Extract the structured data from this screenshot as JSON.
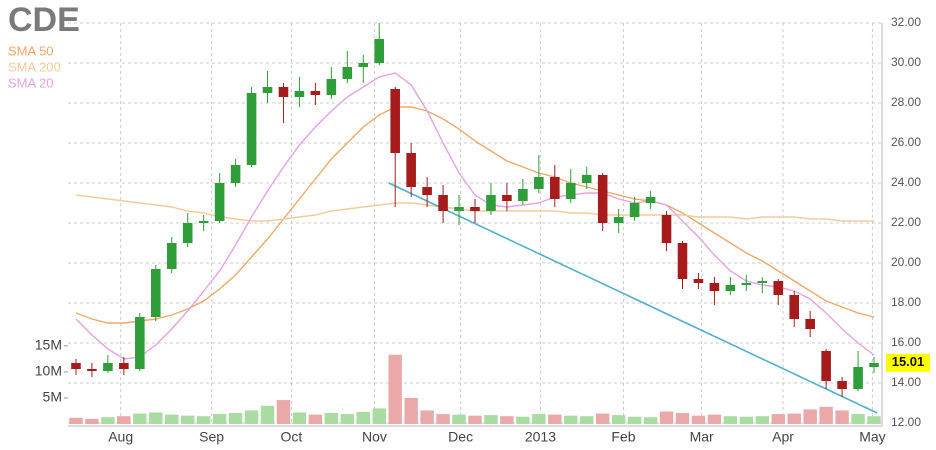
{
  "chart_data": {
    "type": "candlestick",
    "title": "CDE",
    "xlim": [
      -0.5,
      50.5
    ],
    "xticks": [
      {
        "value": 2.8,
        "label": "Aug"
      },
      {
        "value": 8.5,
        "label": "Sep"
      },
      {
        "value": 13.5,
        "label": "Oct"
      },
      {
        "value": 18.7,
        "label": "Nov"
      },
      {
        "value": 24.1,
        "label": "Dec"
      },
      {
        "value": 29.1,
        "label": "2013"
      },
      {
        "value": 34.3,
        "label": "Feb"
      },
      {
        "value": 39.2,
        "label": "Mar"
      },
      {
        "value": 44.3,
        "label": "Apr"
      },
      {
        "value": 49.9,
        "label": "May"
      }
    ],
    "ylim": [
      12,
      32
    ],
    "yticks": [
      {
        "value": 12,
        "label": "12.00"
      },
      {
        "value": 14,
        "label": "14.00"
      },
      {
        "value": 16,
        "label": "16.00"
      },
      {
        "value": 18,
        "label": "18.00"
      },
      {
        "value": 20,
        "label": "20.00"
      },
      {
        "value": 22,
        "label": "22.00"
      },
      {
        "value": 24,
        "label": "24.00"
      },
      {
        "value": 26,
        "label": "26.00"
      },
      {
        "value": 28,
        "label": "28.00"
      },
      {
        "value": 30,
        "label": "30.00"
      },
      {
        "value": 32,
        "label": "32.00"
      }
    ],
    "y2lim": [
      0,
      77
    ],
    "y2ticks": [
      {
        "value": 5,
        "label": "5M"
      },
      {
        "value": 10,
        "label": "10M"
      },
      {
        "value": 15,
        "label": "15M"
      }
    ],
    "grid": true,
    "up_color": "#2f9e3a",
    "down_color": "#a61c1c",
    "open": [
      15.0,
      14.7,
      14.6,
      15.0,
      14.7,
      17.3,
      19.7,
      21.0,
      22.0,
      22.1,
      24.0,
      24.9,
      28.5,
      28.8,
      28.3,
      28.6,
      28.4,
      29.2,
      29.8,
      30.0,
      28.7,
      25.5,
      23.8,
      23.4,
      22.6,
      22.8,
      22.6,
      23.4,
      23.1,
      23.7,
      24.3,
      23.2,
      24.0,
      24.4,
      22.0,
      22.3,
      23.0,
      22.4,
      21.0,
      19.2,
      19.0,
      18.6,
      18.9,
      19.0,
      19.1,
      18.4,
      17.2,
      15.6,
      14.1,
      13.7,
      14.8
    ],
    "high": [
      15.2,
      15.0,
      15.4,
      15.3,
      17.5,
      19.9,
      21.3,
      22.5,
      22.4,
      24.5,
      25.2,
      28.8,
      29.6,
      29.0,
      29.3,
      29.0,
      29.8,
      30.6,
      30.4,
      32.0,
      28.8,
      26.0,
      24.3,
      23.9,
      23.4,
      23.2,
      24.0,
      24.0,
      24.2,
      25.4,
      24.9,
      24.7,
      24.8,
      24.5,
      22.7,
      23.3,
      23.6,
      22.6,
      21.1,
      19.5,
      19.3,
      19.3,
      19.4,
      19.3,
      19.2,
      18.6,
      17.6,
      15.7,
      14.3,
      15.6,
      15.3
    ],
    "low": [
      14.4,
      14.3,
      14.5,
      14.4,
      14.6,
      17.1,
      19.5,
      20.8,
      21.6,
      22.0,
      23.8,
      24.8,
      28.0,
      27.0,
      27.8,
      27.9,
      28.2,
      29.0,
      29.0,
      29.9,
      22.8,
      23.3,
      22.8,
      22.0,
      21.9,
      22.0,
      22.4,
      22.6,
      22.9,
      23.5,
      22.8,
      23.0,
      23.7,
      21.6,
      21.5,
      22.1,
      22.7,
      20.6,
      18.7,
      18.7,
      17.9,
      18.4,
      18.6,
      18.5,
      17.9,
      16.8,
      16.3,
      13.7,
      13.3,
      13.6,
      14.5
    ],
    "close": [
      14.7,
      14.6,
      15.0,
      14.7,
      17.3,
      19.7,
      21.0,
      22.0,
      22.1,
      24.0,
      24.9,
      28.5,
      28.8,
      28.3,
      28.6,
      28.4,
      29.2,
      29.8,
      30.0,
      31.2,
      25.5,
      23.8,
      23.4,
      22.6,
      22.8,
      22.6,
      23.4,
      23.1,
      23.7,
      24.3,
      23.2,
      24.0,
      24.4,
      22.0,
      22.3,
      23.0,
      23.3,
      21.0,
      19.2,
      19.0,
      18.6,
      18.9,
      19.0,
      19.1,
      18.4,
      17.2,
      16.7,
      14.1,
      13.7,
      14.8,
      15.0
    ],
    "volume": {
      "axis": "y2",
      "values": [
        1.2,
        1.0,
        1.3,
        1.5,
        2.0,
        2.2,
        1.8,
        1.6,
        1.5,
        1.9,
        2.1,
        2.6,
        3.5,
        4.6,
        2.2,
        1.8,
        2.1,
        1.9,
        2.3,
        3.0,
        13.3,
        5.0,
        2.6,
        1.9,
        1.8,
        1.6,
        1.7,
        1.5,
        1.4,
        1.9,
        1.8,
        1.6,
        1.5,
        2.0,
        1.7,
        1.4,
        1.3,
        2.4,
        2.1,
        1.6,
        1.8,
        1.5,
        1.4,
        1.5,
        1.9,
        2.0,
        2.8,
        3.3,
        2.6,
        1.9,
        1.5
      ]
    },
    "series": [
      {
        "name": "SMA 50",
        "color": "#f0a868",
        "values": [
          17.5,
          17.2,
          17.0,
          17.0,
          17.1,
          17.2,
          17.4,
          17.7,
          18.1,
          18.7,
          19.4,
          20.3,
          21.2,
          22.2,
          23.2,
          24.2,
          25.2,
          26.0,
          26.8,
          27.4,
          27.8,
          27.8,
          27.6,
          27.2,
          26.7,
          26.1,
          25.6,
          25.1,
          24.8,
          24.5,
          24.3,
          24.0,
          23.8,
          23.6,
          23.4,
          23.2,
          23.1,
          22.9,
          22.5,
          22.0,
          21.5,
          21.0,
          20.5,
          20.1,
          19.6,
          19.1,
          18.6,
          18.1,
          17.8,
          17.5,
          17.3
        ]
      },
      {
        "name": "SMA 200",
        "color": "#f3cc9c",
        "values": [
          23.4,
          23.3,
          23.2,
          23.1,
          23.0,
          22.9,
          22.8,
          22.6,
          22.5,
          22.3,
          22.2,
          22.1,
          22.1,
          22.2,
          22.3,
          22.4,
          22.6,
          22.7,
          22.8,
          22.9,
          23.0,
          23.0,
          22.9,
          22.8,
          22.7,
          22.6,
          22.6,
          22.6,
          22.6,
          22.6,
          22.6,
          22.5,
          22.5,
          22.4,
          22.4,
          22.4,
          22.4,
          22.4,
          22.4,
          22.3,
          22.3,
          22.3,
          22.2,
          22.3,
          22.3,
          22.3,
          22.2,
          22.2,
          22.1,
          22.1,
          22.1
        ]
      },
      {
        "name": "SMA 20",
        "color": "#e7a3e3",
        "values": [
          17.2,
          16.4,
          15.7,
          15.2,
          15.3,
          15.9,
          16.7,
          17.6,
          18.6,
          19.6,
          20.9,
          22.3,
          23.6,
          24.8,
          25.9,
          26.8,
          27.6,
          28.3,
          28.8,
          29.3,
          29.5,
          28.9,
          27.6,
          26.0,
          24.5,
          23.4,
          22.9,
          22.8,
          22.9,
          23.0,
          23.3,
          23.4,
          23.5,
          23.5,
          23.2,
          23.0,
          23.1,
          22.9,
          22.1,
          21.3,
          20.4,
          19.6,
          19.1,
          18.9,
          18.8,
          18.6,
          18.2,
          17.5,
          16.7,
          16.0,
          15.4
        ]
      }
    ],
    "trendline": {
      "color": "#4fb0d0",
      "x": [
        19.6,
        50.2
      ],
      "values": [
        24.0,
        12.5
      ]
    },
    "last_price": 15.01
  }
}
